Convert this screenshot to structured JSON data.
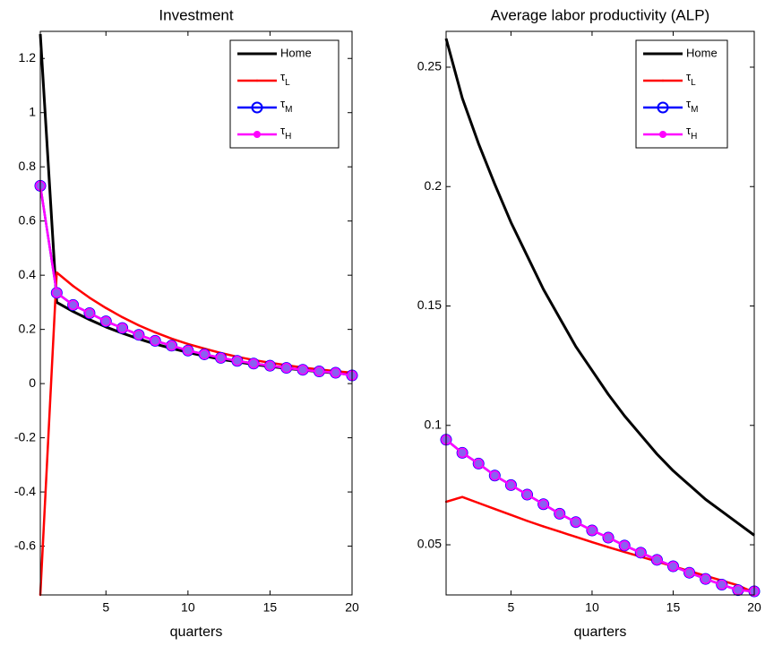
{
  "chart_data": [
    {
      "type": "line",
      "title": "Investment",
      "xlabel": "quarters",
      "x": [
        1,
        2,
        3,
        4,
        5,
        6,
        7,
        8,
        9,
        10,
        11,
        12,
        13,
        14,
        15,
        16,
        17,
        18,
        19,
        20
      ],
      "xlim": [
        1,
        20
      ],
      "xticks": [
        5,
        10,
        15,
        20
      ],
      "ylim": [
        -0.78,
        1.3
      ],
      "yticks": [
        -0.6,
        -0.4,
        -0.2,
        0,
        0.2,
        0.4,
        0.6,
        0.8,
        1,
        1.2
      ],
      "legend": "northeast",
      "series": [
        {
          "name": "Home",
          "color": "#000000",
          "marker": "none",
          "values": [
            1.29,
            0.3,
            0.266,
            0.236,
            0.209,
            0.186,
            0.165,
            0.146,
            0.13,
            0.115,
            0.102,
            0.09,
            0.08,
            0.071,
            0.063,
            0.056,
            0.05,
            0.044,
            0.039,
            0.035
          ]
        },
        {
          "name": "τL",
          "color": "#ff0000",
          "marker": "dot",
          "values": [
            -0.78,
            0.41,
            0.36,
            0.317,
            0.279,
            0.245,
            0.215,
            0.189,
            0.166,
            0.146,
            0.129,
            0.113,
            0.099,
            0.087,
            0.077,
            0.068,
            0.059,
            0.052,
            0.046,
            0.04
          ]
        },
        {
          "name": "τM",
          "color": "#0000ff",
          "marker": "circle",
          "values": [
            0.73,
            0.335,
            0.29,
            0.26,
            0.23,
            0.205,
            0.18,
            0.158,
            0.14,
            0.122,
            0.108,
            0.095,
            0.084,
            0.074,
            0.066,
            0.058,
            0.051,
            0.045,
            0.04,
            0.03
          ]
        },
        {
          "name": "τH",
          "color": "#ff00ff",
          "marker": "filled",
          "values": [
            0.73,
            0.335,
            0.29,
            0.26,
            0.23,
            0.205,
            0.18,
            0.158,
            0.14,
            0.122,
            0.108,
            0.095,
            0.084,
            0.074,
            0.066,
            0.058,
            0.051,
            0.045,
            0.04,
            0.03
          ]
        }
      ]
    },
    {
      "type": "line",
      "title": "Average labor productivity (ALP)",
      "xlabel": "quarters",
      "x": [
        1,
        2,
        3,
        4,
        5,
        6,
        7,
        8,
        9,
        10,
        11,
        12,
        13,
        14,
        15,
        16,
        17,
        18,
        19,
        20
      ],
      "xlim": [
        1,
        20
      ],
      "xticks": [
        5,
        10,
        15,
        20
      ],
      "ylim": [
        0.029,
        0.265
      ],
      "yticks": [
        0.05,
        0.1,
        0.15,
        0.2,
        0.25
      ],
      "legend": "northeast",
      "series": [
        {
          "name": "Home",
          "color": "#000000",
          "marker": "none",
          "values": [
            0.262,
            0.237,
            0.218,
            0.201,
            0.185,
            0.171,
            0.157,
            0.145,
            0.133,
            0.123,
            0.113,
            0.104,
            0.096,
            0.088,
            0.081,
            0.075,
            0.069,
            0.064,
            0.059,
            0.054
          ]
        },
        {
          "name": "τL",
          "color": "#ff0000",
          "marker": "dot",
          "values": [
            0.068,
            0.07,
            0.0675,
            0.065,
            0.0625,
            0.06,
            0.0577,
            0.0555,
            0.0533,
            0.0511,
            0.049,
            0.047,
            0.045,
            0.043,
            0.041,
            0.039,
            0.037,
            0.035,
            0.033,
            0.03
          ]
        },
        {
          "name": "τM",
          "color": "#0000ff",
          "marker": "circle",
          "values": [
            0.094,
            0.0885,
            0.084,
            0.079,
            0.075,
            0.071,
            0.067,
            0.063,
            0.0595,
            0.056,
            0.053,
            0.0497,
            0.0467,
            0.0437,
            0.041,
            0.0383,
            0.0357,
            0.0333,
            0.031,
            0.0305
          ]
        },
        {
          "name": "τH",
          "color": "#ff00ff",
          "marker": "filled",
          "values": [
            0.094,
            0.0885,
            0.084,
            0.079,
            0.075,
            0.071,
            0.067,
            0.063,
            0.0595,
            0.056,
            0.053,
            0.0497,
            0.0467,
            0.0437,
            0.041,
            0.0383,
            0.0357,
            0.0333,
            0.031,
            0.0305
          ]
        }
      ]
    }
  ]
}
